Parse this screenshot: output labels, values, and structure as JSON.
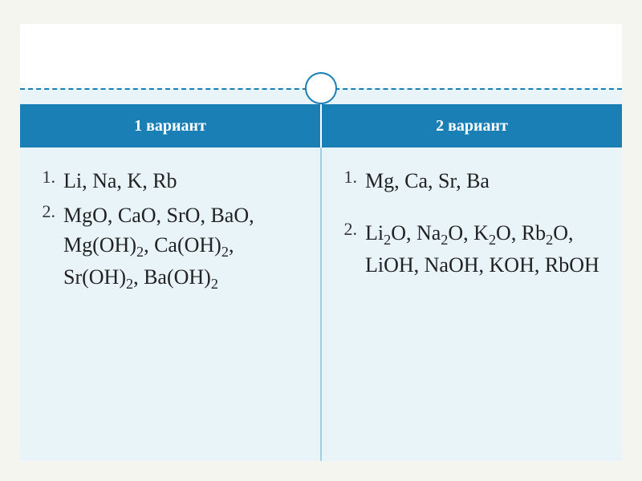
{
  "colors": {
    "page_bg": "#f5f5f0",
    "slide_bg": "#e9f4f9",
    "top_bg": "#ffffff",
    "accent": "#1a7fb5",
    "divider": "#9fcde3",
    "text": "#222222"
  },
  "headers": {
    "left": "1 вариант",
    "right": "2 вариант"
  },
  "left_column": [
    {
      "num": "1.",
      "html": "Li, Na, K, Rb"
    },
    {
      "num": "2.",
      "html": "MgO, CaO, SrO, BaO, Mg(OH)<sub>2</sub>, Ca(OH)<sub>2</sub>, Sr(OH)<sub>2</sub>, Ba(OH)<sub>2</sub>"
    }
  ],
  "right_column": [
    {
      "num": "1.",
      "html": "Mg, Ca, Sr, Ba",
      "spacer_after": true
    },
    {
      "num": "2.",
      "html": "Li<sub>2</sub>O, Na<sub>2</sub>O, K<sub>2</sub>O, Rb<sub>2</sub>O, LiOH, NaOH, KOH, RbOH"
    }
  ]
}
